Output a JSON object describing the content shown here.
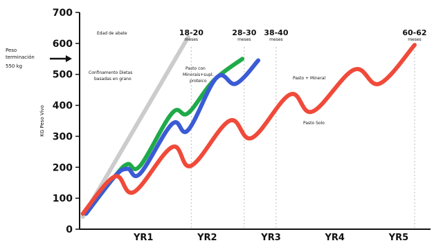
{
  "chart_data": {
    "type": "line",
    "ylabel": "KG Peso Vivo",
    "ylim": [
      0,
      700
    ],
    "y_ticks": [
      "0",
      "100",
      "200",
      "300",
      "400",
      "500",
      "600",
      "700"
    ],
    "x_tick_labels": [
      "YR1",
      "YR2",
      "YR3",
      "YR4",
      "YR5"
    ],
    "xlim": [
      0,
      5.5
    ],
    "grid": false,
    "series": [
      {
        "name": "Confinamento Dietas basadas en grano",
        "color": "#cccccc",
        "points": [
          [
            0.05,
            40
          ],
          [
            1.7,
            620
          ]
        ]
      },
      {
        "name": "Pasto con Minerais+supl. proteico",
        "color": "#1faa4a",
        "points": [
          [
            0.1,
            50
          ],
          [
            0.55,
            170
          ],
          [
            0.75,
            210
          ],
          [
            0.95,
            205
          ],
          [
            1.45,
            375
          ],
          [
            1.7,
            375
          ],
          [
            2.1,
            480
          ],
          [
            2.55,
            550
          ]
        ]
      },
      {
        "name": "",
        "color": "#3b5bd6",
        "points": [
          [
            0.1,
            50
          ],
          [
            0.55,
            170
          ],
          [
            0.75,
            195
          ],
          [
            0.95,
            180
          ],
          [
            1.45,
            340
          ],
          [
            1.7,
            320
          ],
          [
            2.15,
            490
          ],
          [
            2.45,
            470
          ],
          [
            2.8,
            545
          ]
        ]
      },
      {
        "name": "Pasto Solo / Pasto + Mineral",
        "color": "#f04a3a",
        "points": [
          [
            0.05,
            50
          ],
          [
            0.55,
            170
          ],
          [
            0.85,
            120
          ],
          [
            1.45,
            265
          ],
          [
            1.75,
            205
          ],
          [
            2.35,
            350
          ],
          [
            2.7,
            295
          ],
          [
            3.3,
            435
          ],
          [
            3.65,
            380
          ],
          [
            4.3,
            515
          ],
          [
            4.7,
            470
          ],
          [
            5.25,
            595
          ]
        ]
      }
    ],
    "annotations": {
      "peso_line1": "Peso",
      "peso_line2": "terminación",
      "peso_line3": "550 kg",
      "edad": "Edad de abate",
      "grain_line1": "Confinamento Dietas",
      "grain_line2": "basadas en grano",
      "pasto_con_line1": "Pasto con",
      "pasto_con_line2": "Minerais+supl.",
      "pasto_con_line3": "proteico",
      "pasto_mineral": "Pasto + Mineral",
      "pasto_solo": "Pasto Solo"
    },
    "age_markers": [
      {
        "label": "18-20",
        "unit": "meses",
        "x": 1.75
      },
      {
        "label": "28-30",
        "unit": "meses",
        "x": 2.58
      },
      {
        "label": "38-40",
        "unit": "meses",
        "x": 3.08
      },
      {
        "label": "60-62",
        "unit": "meses",
        "x": 5.25
      }
    ]
  }
}
